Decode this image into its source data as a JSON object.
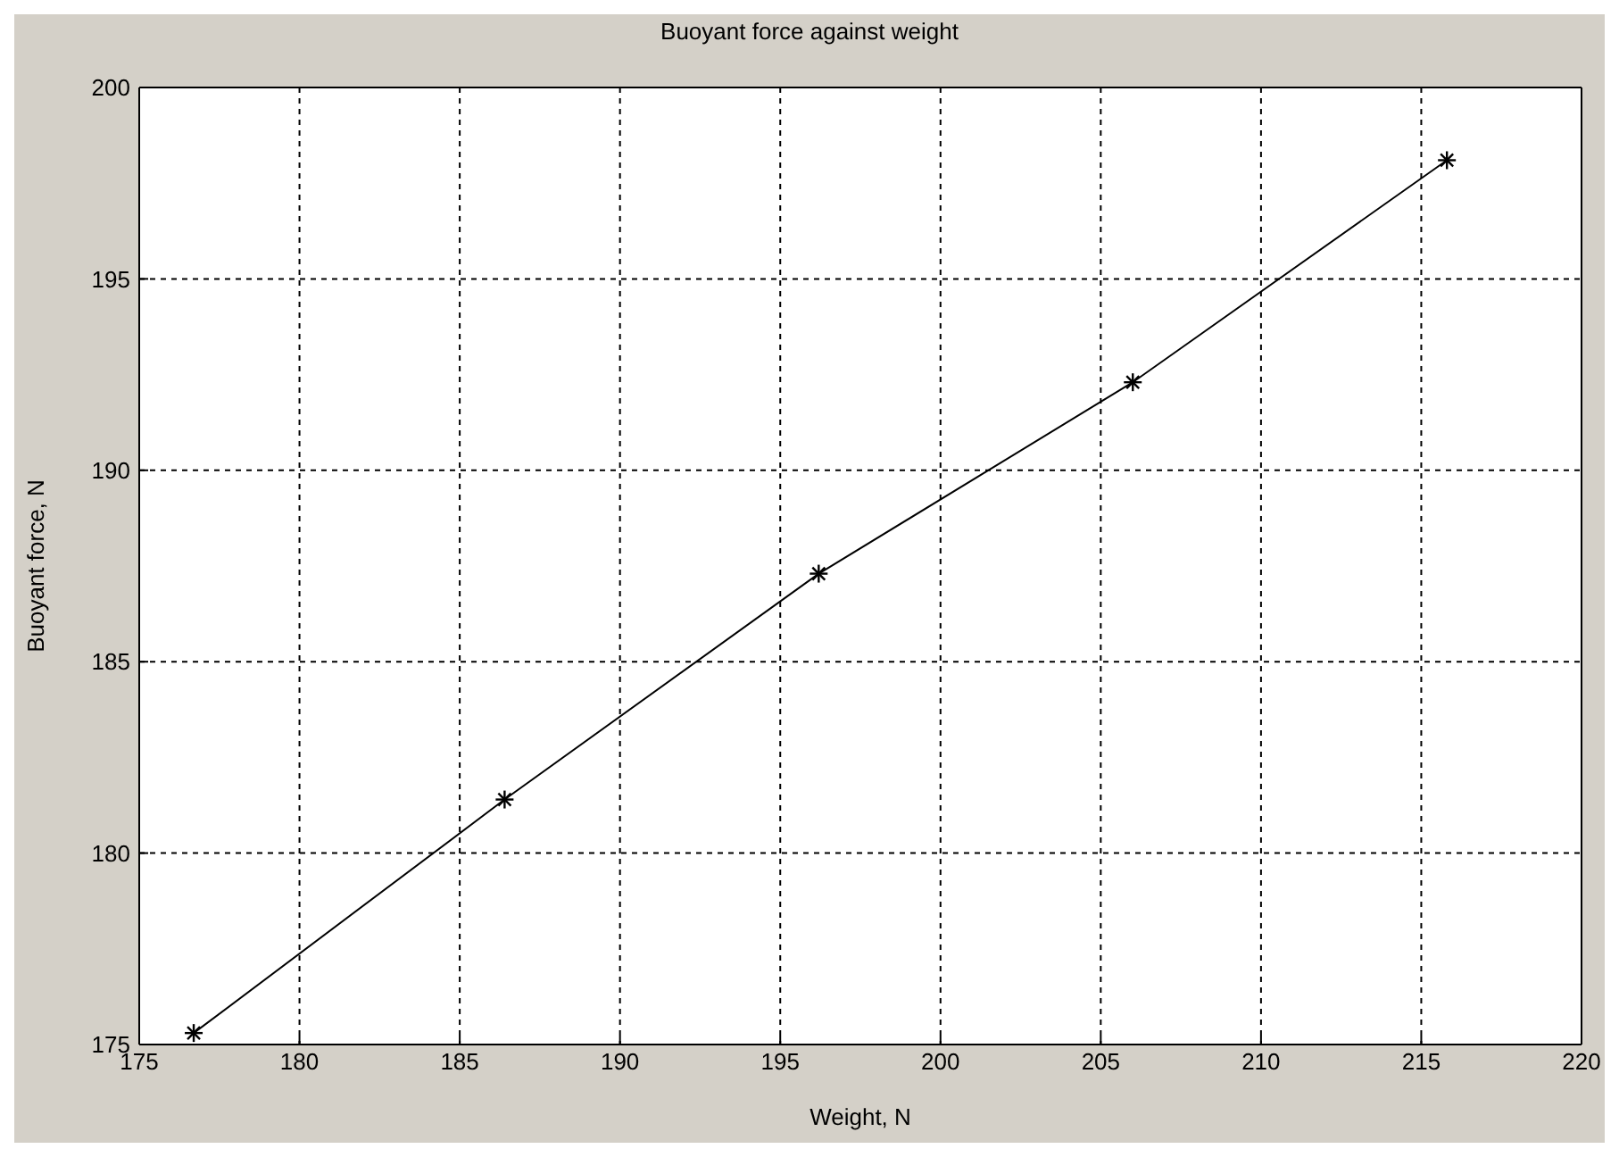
{
  "chart_data": {
    "type": "line",
    "title": "Buoyant force against weight",
    "xlabel": "Weight, N",
    "ylabel": "Buoyant force, N",
    "x": [
      176.7,
      186.4,
      196.2,
      206.0,
      215.8
    ],
    "series": [
      {
        "color": "#000000",
        "values": [
          175.3,
          181.4,
          187.3,
          192.3,
          198.1
        ]
      }
    ],
    "xlim": [
      175,
      220
    ],
    "xticks": [
      175,
      180,
      185,
      190,
      195,
      200,
      205,
      210,
      215,
      220
    ],
    "ylim": [
      175,
      200
    ],
    "yticks": [
      175,
      180,
      185,
      190,
      195,
      200
    ],
    "grid": true,
    "marker": "cross",
    "line_style": "solid",
    "legend": false
  }
}
